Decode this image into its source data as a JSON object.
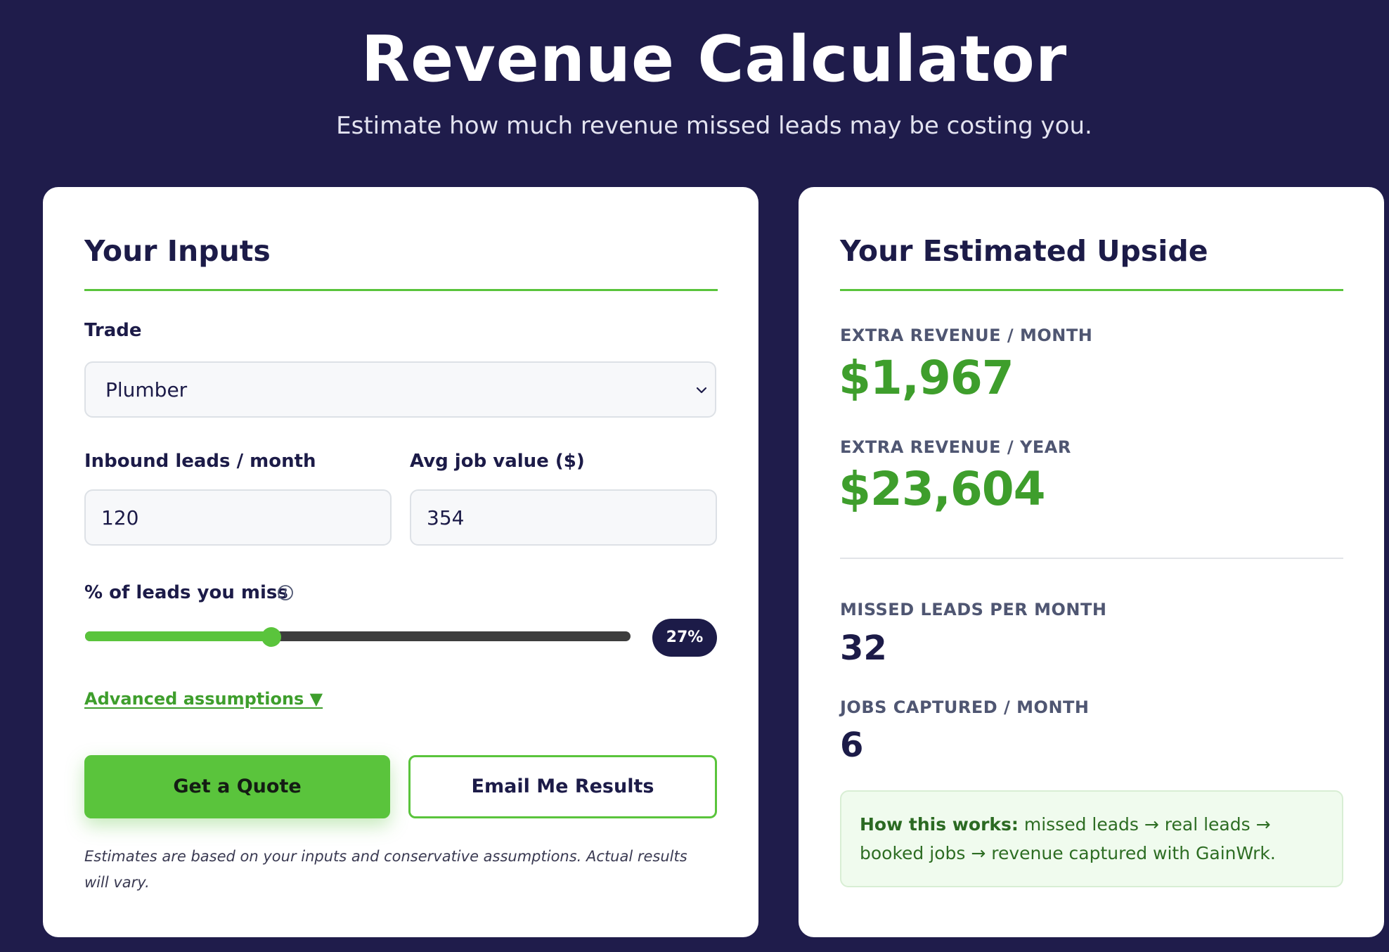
{
  "header": {
    "title": "Revenue Calculator",
    "subtitle": "Estimate how much revenue missed leads may be costing you."
  },
  "inputs_card": {
    "title": "Your Inputs",
    "trade_label": "Trade",
    "trade_value": "Plumber",
    "leads_label": "Inbound leads / month",
    "leads_value": "120",
    "job_value_label": "Avg job value ($)",
    "job_value_value": "354",
    "miss_label": "% of leads you miss",
    "miss_percent": 27,
    "miss_percent_text": "27%",
    "advanced_label": "Advanced assumptions ▼",
    "quote_button": "Get a Quote",
    "email_button": "Email Me Results",
    "disclaimer": "Estimates are based on your inputs and conservative assumptions. Actual results will vary."
  },
  "results_card": {
    "title": "Your Estimated Upside",
    "month_label": "EXTRA REVENUE / MONTH",
    "month_value": "$1,967",
    "year_label": "EXTRA REVENUE / YEAR",
    "year_value": "$23,604",
    "missed_label": "MISSED LEADS PER MONTH",
    "missed_value": "32",
    "jobs_label": "JOBS CAPTURED / MONTH",
    "jobs_value": "6",
    "how_lead": "How this works:",
    "how_text": " missed leads → real leads → booked jobs → revenue captured with GainWrk."
  },
  "colors": {
    "background": "#1f1c4b",
    "accent_green": "#5ac43c",
    "value_green": "#3e9e2c",
    "navy": "#1c1b48"
  },
  "icons": {
    "select_chevron": "chevron-down-icon",
    "miss_info": "info-icon"
  }
}
